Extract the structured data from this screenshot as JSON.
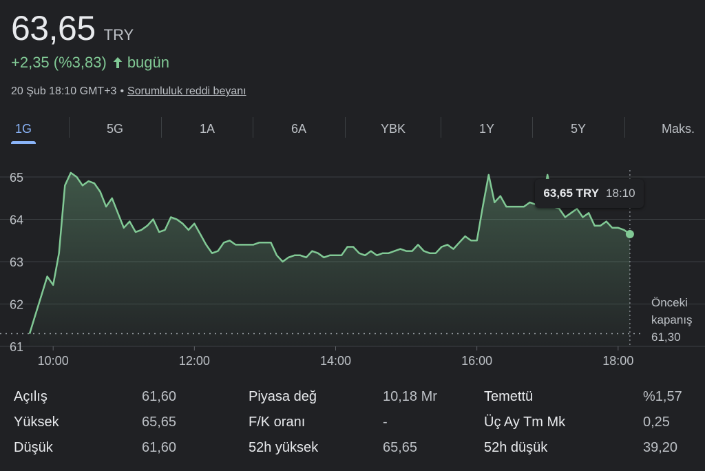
{
  "quote": {
    "price": "63,65",
    "currency": "TRY",
    "change": "+2,35 (%3,83)",
    "change_period": "bugün",
    "timestamp": "20 Şub 18:10 GMT+3",
    "disclaimer_link": "Sorumluluk reddi beyanı"
  },
  "colors": {
    "background": "#202124",
    "positive": "#81c995",
    "active_tab": "#8ab4f8"
  },
  "tabs": [
    {
      "label": "1G",
      "active": true
    },
    {
      "label": "5G",
      "active": false
    },
    {
      "label": "1A",
      "active": false
    },
    {
      "label": "6A",
      "active": false
    },
    {
      "label": "YBK",
      "active": false
    },
    {
      "label": "1Y",
      "active": false
    },
    {
      "label": "5Y",
      "active": false
    },
    {
      "label": "Maks.",
      "active": false
    }
  ],
  "tooltip": {
    "value": "63,65 TRY",
    "time": "18:10"
  },
  "previous_close": {
    "line1": "Önceki",
    "line2": "kapanış",
    "value": "61,30"
  },
  "chart_data": {
    "type": "area",
    "xlabel": "",
    "ylabel": "",
    "x_ticks": [
      "10:00",
      "12:00",
      "14:00",
      "16:00",
      "18:00"
    ],
    "y_ticks": [
      "65",
      "64",
      "63",
      "62",
      "61"
    ],
    "ylim": [
      61,
      65.5
    ],
    "xlim": [
      "09:40",
      "18:20"
    ],
    "previous_close": 61.3,
    "grid": true,
    "series": [
      {
        "x": [
          "09:40",
          "09:45",
          "09:50",
          "09:55",
          "10:00",
          "10:05",
          "10:10",
          "10:15",
          "10:20",
          "10:25",
          "10:30",
          "10:35",
          "10:40",
          "10:45",
          "10:50",
          "10:55",
          "11:00",
          "11:05",
          "11:10",
          "11:15",
          "11:20",
          "11:25",
          "11:30",
          "11:35",
          "11:40",
          "11:45",
          "11:50",
          "11:55",
          "12:00",
          "12:05",
          "12:10",
          "12:15",
          "12:20",
          "12:25",
          "12:30",
          "12:35",
          "12:40",
          "12:45",
          "12:50",
          "12:55",
          "13:00",
          "13:05",
          "13:10",
          "13:15",
          "13:20",
          "13:25",
          "13:30",
          "13:35",
          "13:40",
          "13:45",
          "13:50",
          "13:55",
          "14:00",
          "14:05",
          "14:10",
          "14:15",
          "14:20",
          "14:25",
          "14:30",
          "14:35",
          "14:40",
          "14:45",
          "14:50",
          "14:55",
          "15:00",
          "15:05",
          "15:10",
          "15:15",
          "15:20",
          "15:25",
          "15:30",
          "15:35",
          "15:40",
          "15:45",
          "15:50",
          "15:55",
          "16:00",
          "16:05",
          "16:10",
          "16:15",
          "16:20",
          "16:25",
          "16:30",
          "16:35",
          "16:40",
          "16:45",
          "16:50",
          "16:55",
          "17:00",
          "17:05",
          "17:10",
          "17:15",
          "17:20",
          "17:25",
          "17:30",
          "17:35",
          "17:40",
          "17:45",
          "17:50",
          "17:55",
          "18:00",
          "18:05",
          "18:10"
        ],
        "values": [
          61.3,
          61.75,
          62.2,
          62.65,
          62.45,
          63.2,
          64.8,
          65.1,
          65.0,
          64.8,
          64.9,
          64.85,
          64.65,
          64.3,
          64.5,
          64.15,
          63.8,
          63.95,
          63.7,
          63.75,
          63.85,
          64.0,
          63.7,
          63.75,
          64.05,
          64.0,
          63.9,
          63.75,
          63.9,
          63.65,
          63.4,
          63.2,
          63.25,
          63.45,
          63.5,
          63.4,
          63.4,
          63.4,
          63.4,
          63.45,
          63.45,
          63.45,
          63.15,
          63.0,
          63.1,
          63.15,
          63.15,
          63.1,
          63.25,
          63.2,
          63.1,
          63.15,
          63.15,
          63.15,
          63.35,
          63.35,
          63.2,
          63.15,
          63.25,
          63.15,
          63.2,
          63.2,
          63.25,
          63.3,
          63.25,
          63.25,
          63.4,
          63.25,
          63.2,
          63.2,
          63.35,
          63.4,
          63.3,
          63.45,
          63.6,
          63.5,
          63.5,
          64.3,
          65.05,
          64.4,
          64.55,
          64.3,
          64.3,
          64.3,
          64.3,
          64.4,
          64.35,
          64.3,
          65.05,
          64.3,
          64.25,
          64.05,
          64.15,
          64.25,
          64.05,
          64.15,
          63.85,
          63.85,
          63.95,
          63.8,
          63.8,
          63.75,
          63.65
        ]
      }
    ]
  },
  "stats": [
    {
      "label": "Açılış",
      "value": "61,60"
    },
    {
      "label": "Yüksek",
      "value": "65,65"
    },
    {
      "label": "Düşük",
      "value": "61,60"
    },
    {
      "label": "Piyasa değ",
      "value": "10,18 Mr"
    },
    {
      "label": "F/K oranı",
      "value": "-"
    },
    {
      "label": "52h yüksek",
      "value": "65,65"
    },
    {
      "label": "Temettü",
      "value": "%1,57"
    },
    {
      "label": "Üç Ay Tm Mk",
      "value": "0,25"
    },
    {
      "label": "52h düşük",
      "value": "39,20"
    }
  ]
}
